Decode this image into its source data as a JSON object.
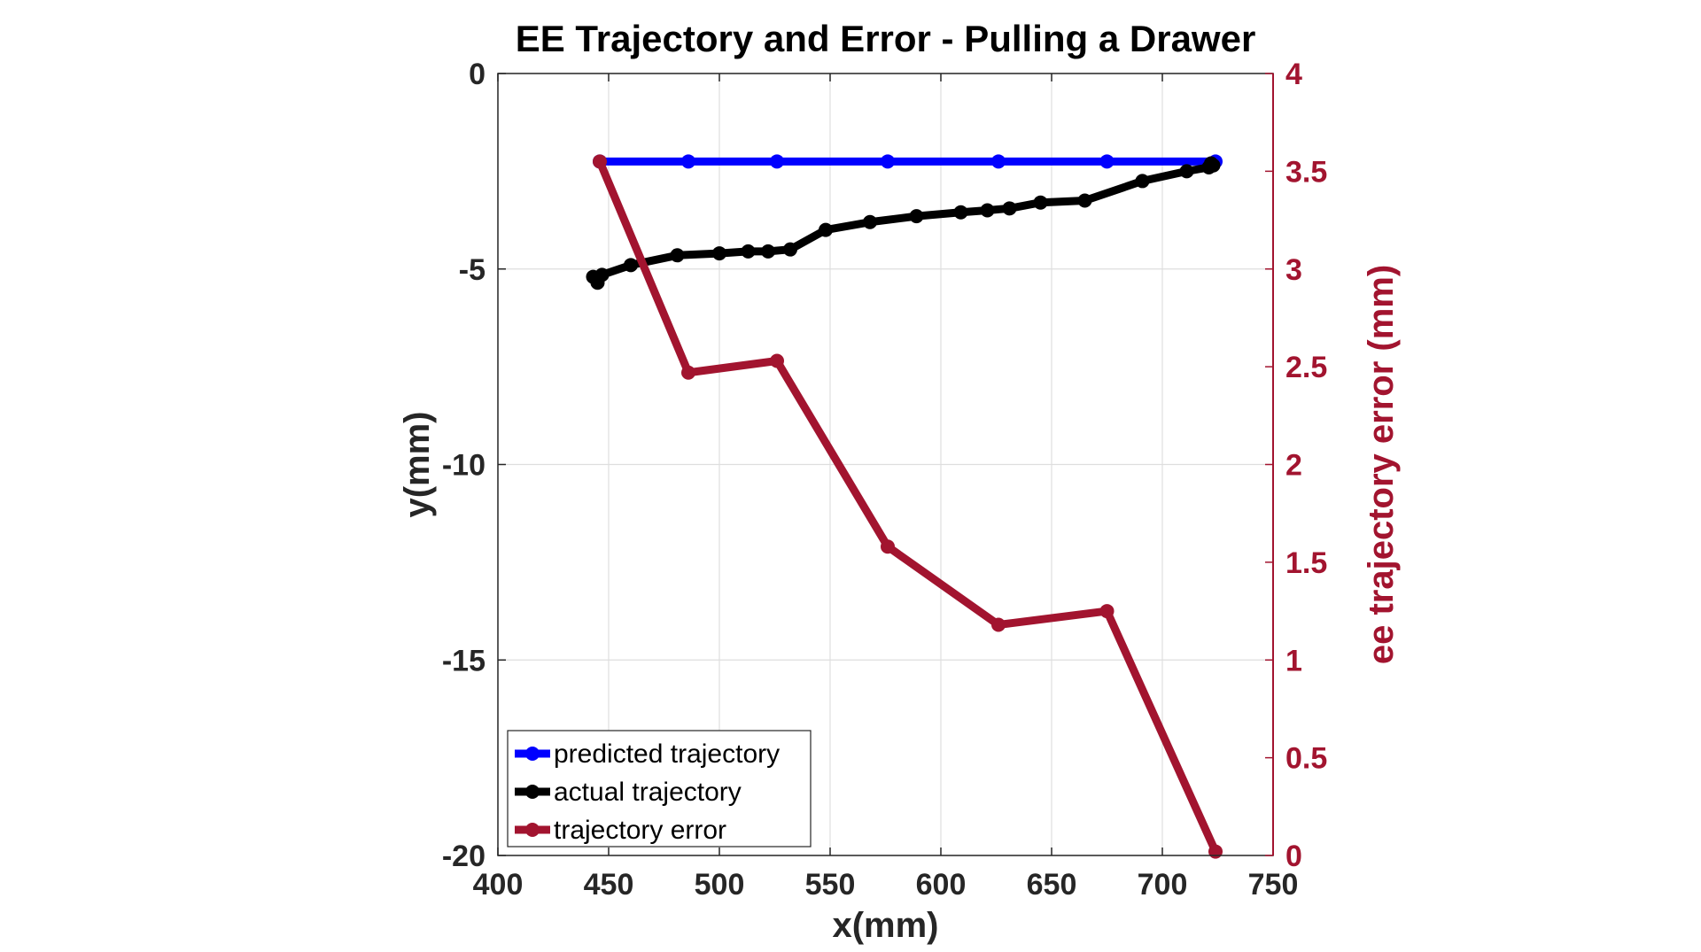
{
  "chart_data": {
    "type": "line",
    "title": "EE Trajectory and Error - Pulling a Drawer",
    "xlabel": "x(mm)",
    "ylabel": "y(mm)",
    "y2label": "ee trajectory error (mm)",
    "xlim": [
      400,
      750
    ],
    "ylim": [
      -20,
      0
    ],
    "y2lim": [
      0,
      4
    ],
    "xticks": [
      400,
      450,
      500,
      550,
      600,
      650,
      700,
      750
    ],
    "yticks": [
      0,
      -5,
      -10,
      -15,
      -20
    ],
    "y2ticks": [
      4,
      3.5,
      3,
      2.5,
      2,
      1.5,
      1,
      0.5,
      0
    ],
    "xtick_labels": [
      "400",
      "450",
      "500",
      "550",
      "600",
      "650",
      "700",
      "750"
    ],
    "ytick_labels": [
      "0",
      "-5",
      "-10",
      "-15",
      "-20"
    ],
    "y2tick_labels": [
      "4",
      "3.5",
      "3",
      "2.5",
      "2",
      "1.5",
      "1",
      "0.5",
      "0"
    ],
    "grid": true,
    "legend_position": "bottom-left",
    "series": [
      {
        "name": "predicted trajectory",
        "axis": "left",
        "color": "#0000FF",
        "points": [
          [
            446,
            -2.25
          ],
          [
            486,
            -2.25
          ],
          [
            526,
            -2.25
          ],
          [
            576,
            -2.25
          ],
          [
            626,
            -2.25
          ],
          [
            675,
            -2.25
          ],
          [
            724,
            -2.25
          ]
        ]
      },
      {
        "name": "actual trajectory",
        "axis": "left",
        "color": "#000000",
        "points": [
          [
            443,
            -5.2
          ],
          [
            445,
            -5.35
          ],
          [
            447,
            -5.15
          ],
          [
            460,
            -4.9
          ],
          [
            481,
            -4.65
          ],
          [
            500,
            -4.6
          ],
          [
            513,
            -4.55
          ],
          [
            522,
            -4.55
          ],
          [
            532,
            -4.5
          ],
          [
            548,
            -4.0
          ],
          [
            568,
            -3.8
          ],
          [
            589,
            -3.65
          ],
          [
            609,
            -3.55
          ],
          [
            621,
            -3.5
          ],
          [
            631,
            -3.45
          ],
          [
            645,
            -3.3
          ],
          [
            665,
            -3.25
          ],
          [
            691,
            -2.75
          ],
          [
            711,
            -2.5
          ],
          [
            721,
            -2.4
          ],
          [
            722,
            -2.3
          ],
          [
            723,
            -2.35
          ]
        ]
      },
      {
        "name": "trajectory error",
        "axis": "right",
        "color": "#A2142F",
        "points": [
          [
            446,
            3.55
          ],
          [
            486,
            2.47
          ],
          [
            526,
            2.53
          ],
          [
            576,
            1.58
          ],
          [
            626,
            1.18
          ],
          [
            675,
            1.25
          ],
          [
            724,
            0.02
          ]
        ]
      }
    ]
  }
}
